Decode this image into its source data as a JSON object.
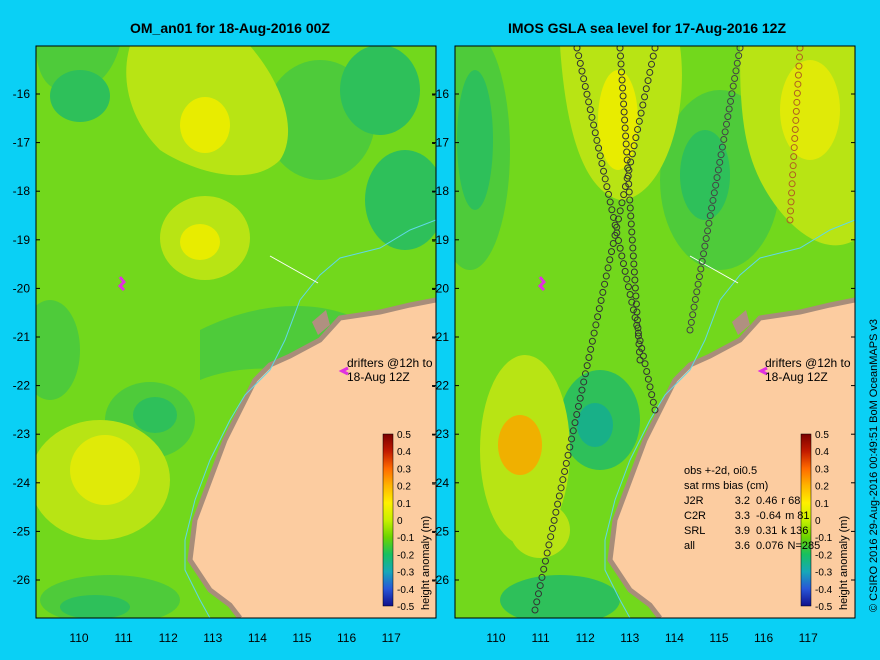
{
  "left_panel": {
    "title": "OM_an01 for 18-Aug-2016 00Z",
    "drifter_note": [
      "drifters @12h to",
      "18-Aug 12Z"
    ]
  },
  "right_panel": {
    "title": "IMOS GSLA sea level  for 17-Aug-2016 12Z",
    "drifter_note": [
      "drifters @12h to",
      "18-Aug 12Z"
    ],
    "obs_header": [
      "obs +-2d, oi0.5",
      "sat rms bias (cm)"
    ],
    "obs_rows": [
      {
        "sat": "J2R",
        "rms": "3.2",
        "bias": "0.46",
        "extra": "r 68"
      },
      {
        "sat": "C2R",
        "rms": "3.3",
        "bias": "-0.64",
        "extra": "m 81"
      },
      {
        "sat": "SRL",
        "rms": "3.9",
        "bias": "0.31",
        "extra": "k 136"
      },
      {
        "sat": "all",
        "rms": "3.6",
        "bias": "0.076",
        "extra": "N=285"
      }
    ]
  },
  "axes": {
    "lat_labels": [
      "-16",
      "-17",
      "-18",
      "-19",
      "-20",
      "-21",
      "-22",
      "-23",
      "-24",
      "-25",
      "-26"
    ],
    "lon_labels": [
      "110",
      "111",
      "112",
      "113",
      "114",
      "115",
      "116",
      "117"
    ]
  },
  "colorbar": {
    "label": "height anomaly (m)",
    "ticks": [
      "0.5",
      "0.4",
      "0.3",
      "0.2",
      "0.1",
      "0",
      "-0.1",
      "-0.2",
      "-0.3",
      "-0.4",
      "-0.5"
    ],
    "colors_top_to_bottom": [
      "#7a0000",
      "#c21a00",
      "#ff6a00",
      "#ffb400",
      "#fff000",
      "#c8f000",
      "#6cd400",
      "#17c060",
      "#16a8b8",
      "#2856d8",
      "#10108c"
    ]
  },
  "credit": "© CSIRO 2016   29-Aug-2016 00:49:51 BoM OceanMAPS v3",
  "colors": {
    "background": "#0ad0f5",
    "land": "#fccca0",
    "ocean_base": "#72d81c",
    "anomaly_low": "#2ec05a",
    "anomaly_high": "#d8ec10",
    "anomaly_higher": "#f2ec00",
    "coastline": "#b09080",
    "contour": "#60d8e8",
    "drifter": "#e030e0"
  }
}
